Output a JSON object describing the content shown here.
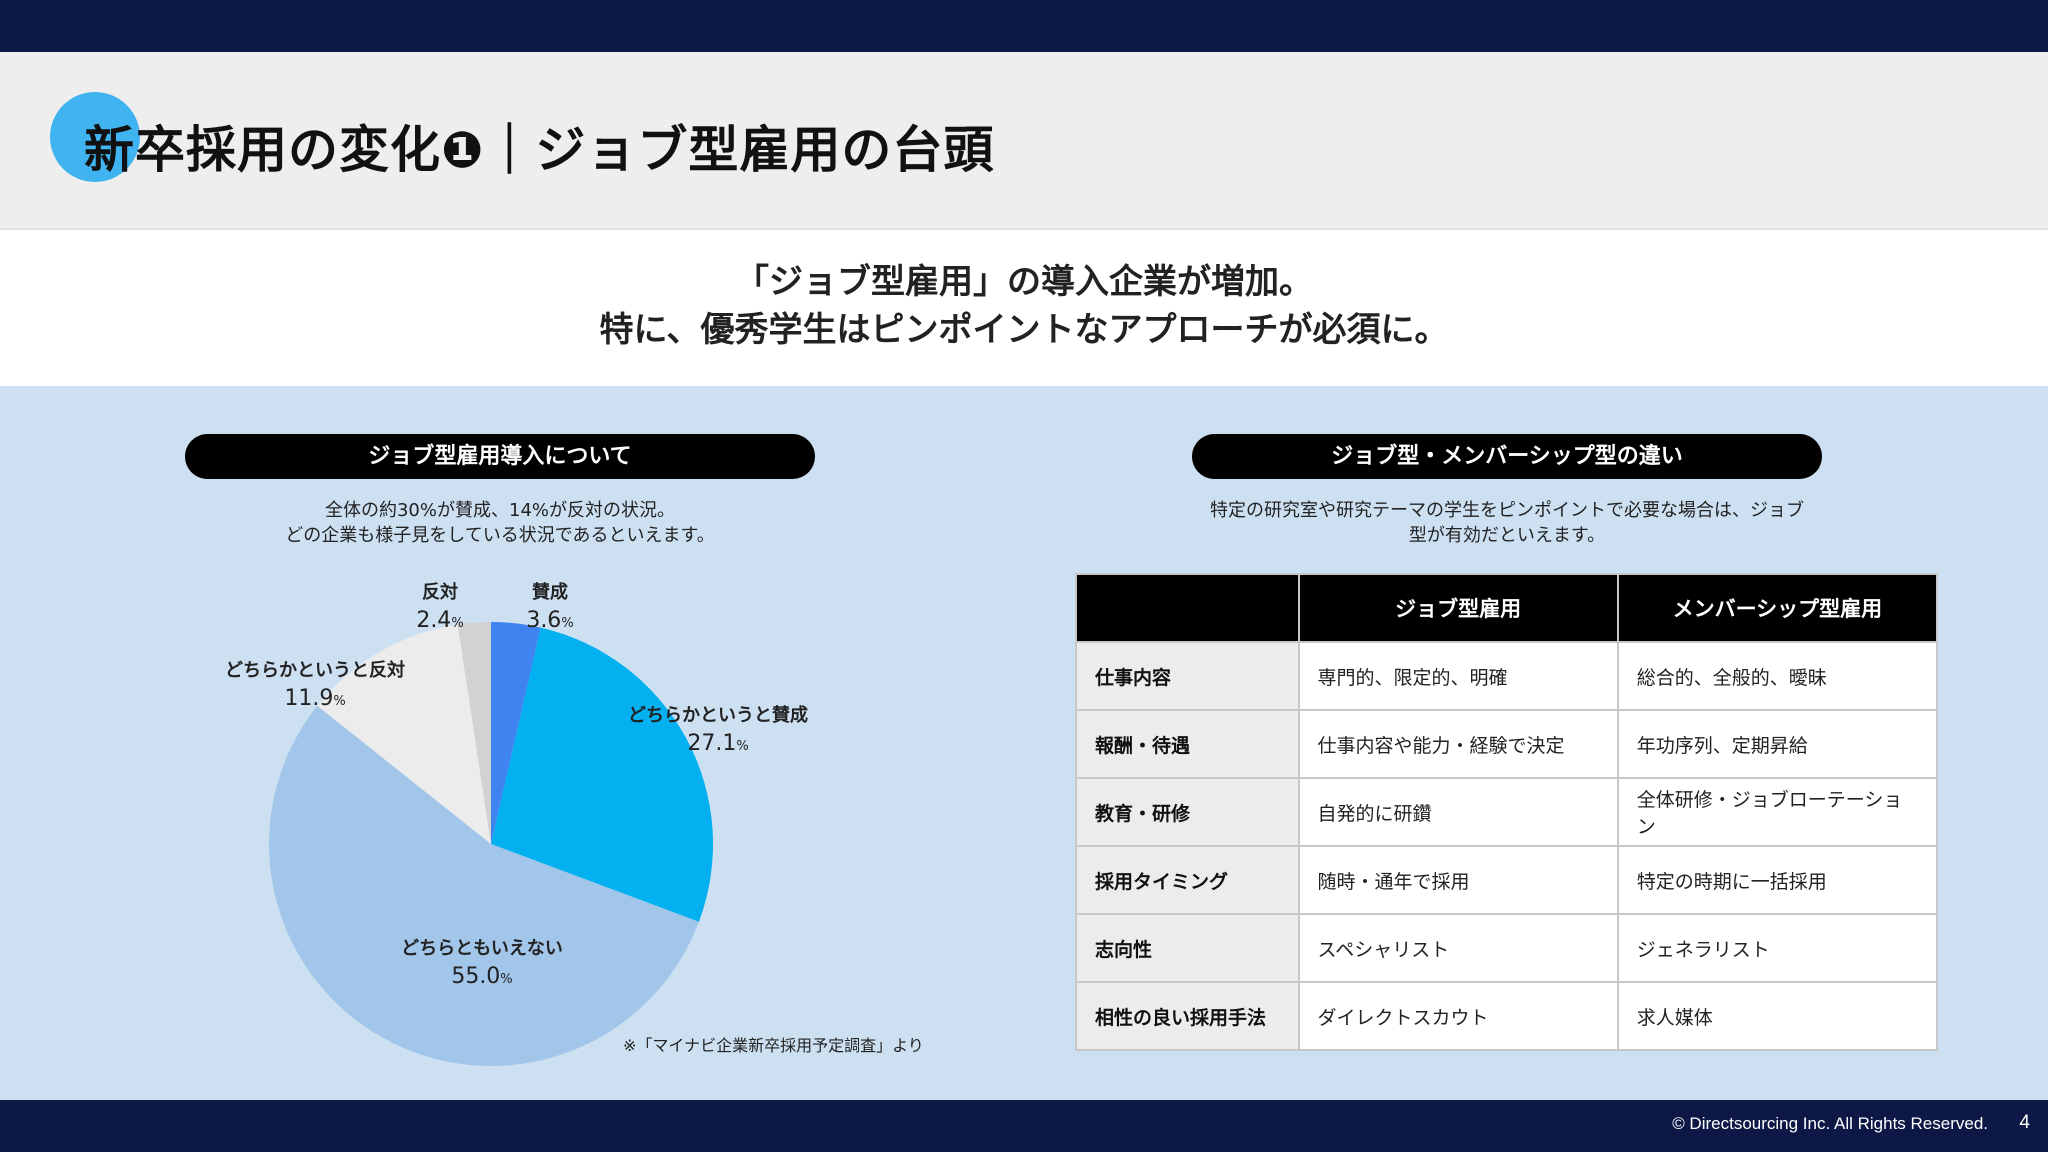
{
  "header": {
    "title": "新卒採用の変化❶｜ジョブ型雇用の台頭"
  },
  "lead": {
    "line1": "「ジョブ型雇用」の導入企業が増加。",
    "line2": "特に、優秀学生はピンポイントなアプローチが必須に。"
  },
  "left_panel": {
    "heading": "ジョブ型雇用導入について",
    "desc_line1": "全体の約30%が賛成、14%が反対の状況。",
    "desc_line2": "どの企業も様子見をしている状況であるといえます。",
    "source": "※「マイナビ企業新卒採用予定調査」より"
  },
  "chart_data": {
    "type": "pie",
    "unit": "%",
    "slices": [
      {
        "label": "賛成",
        "value": 3.6,
        "value_text": "3.6",
        "color": "#3e83f0"
      },
      {
        "label": "どちらかというと賛成",
        "value": 27.1,
        "value_text": "27.1",
        "color": "#03b0f0"
      },
      {
        "label": "どちらともいえない",
        "value": 55.0,
        "value_text": "55.0",
        "color": "#a2c6ea"
      },
      {
        "label": "どちらかというと反対",
        "value": 11.9,
        "value_text": "11.9",
        "color": "#ececec"
      },
      {
        "label": "反対",
        "value": 2.4,
        "value_text": "2.4",
        "color": "#d2d2d2"
      }
    ]
  },
  "right_panel": {
    "heading": "ジョブ型・メンバーシップ型の違い",
    "desc_line1": "特定の研究室や研究テーマの学生をピンポイントで必要な場合は、ジョブ",
    "desc_line2": "型が有効だといえます。",
    "table": {
      "headers": [
        "",
        "ジョブ型雇用",
        "メンバーシップ型雇用"
      ],
      "rows": [
        [
          "仕事内容",
          "専門的、限定的、明確",
          "総合的、全般的、曖昧"
        ],
        [
          "報酬・待遇",
          "仕事内容や能力・経験で決定",
          "年功序列、定期昇給"
        ],
        [
          "教育・研修",
          "自発的に研鑽",
          "全体研修・ジョブローテーション"
        ],
        [
          "採用タイミング",
          "随時・通年で採用",
          "特定の時期に一括採用"
        ],
        [
          "志向性",
          "スペシャリスト",
          "ジェネラリスト"
        ],
        [
          "相性の良い採用手法",
          "ダイレクトスカウト",
          "求人媒体"
        ]
      ]
    }
  },
  "footer": {
    "copyright": "© Directsourcing Inc. All Rights Reserved.",
    "page": "4"
  }
}
